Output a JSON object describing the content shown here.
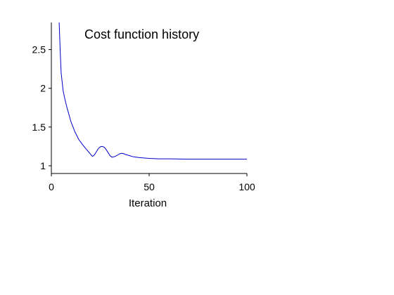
{
  "chart_data": {
    "type": "line",
    "title": "Cost function history",
    "xlabel": "Iteration",
    "ylabel": "",
    "xlim": [
      0,
      100
    ],
    "ylim": [
      0.9,
      2.85
    ],
    "xticks": [
      {
        "value": 0,
        "label": "0"
      },
      {
        "value": 50,
        "label": "50"
      },
      {
        "value": 100,
        "label": "100"
      }
    ],
    "yticks": [
      {
        "value": 1,
        "label": "1"
      },
      {
        "value": 1.5,
        "label": "1.5"
      },
      {
        "value": 2,
        "label": "2"
      },
      {
        "value": 2.5,
        "label": "2.5"
      }
    ],
    "grid": false,
    "line_color": "#0000cc",
    "series": [
      {
        "x": [
          4,
          4.5,
          5,
          6,
          7,
          8,
          10,
          12,
          14,
          16,
          18,
          20,
          21,
          22,
          23,
          24,
          25,
          26,
          27,
          28,
          29,
          30,
          31,
          32,
          33,
          34,
          35,
          36,
          37,
          38,
          40,
          42,
          45,
          50,
          55,
          60,
          70,
          80,
          90,
          100
        ],
        "y": [
          2.85,
          2.5,
          2.2,
          1.97,
          1.85,
          1.75,
          1.57,
          1.44,
          1.34,
          1.27,
          1.21,
          1.15,
          1.12,
          1.14,
          1.18,
          1.22,
          1.245,
          1.25,
          1.24,
          1.21,
          1.17,
          1.13,
          1.11,
          1.115,
          1.125,
          1.14,
          1.155,
          1.16,
          1.155,
          1.145,
          1.13,
          1.115,
          1.105,
          1.095,
          1.09,
          1.09,
          1.085,
          1.085,
          1.085,
          1.085
        ]
      }
    ]
  }
}
